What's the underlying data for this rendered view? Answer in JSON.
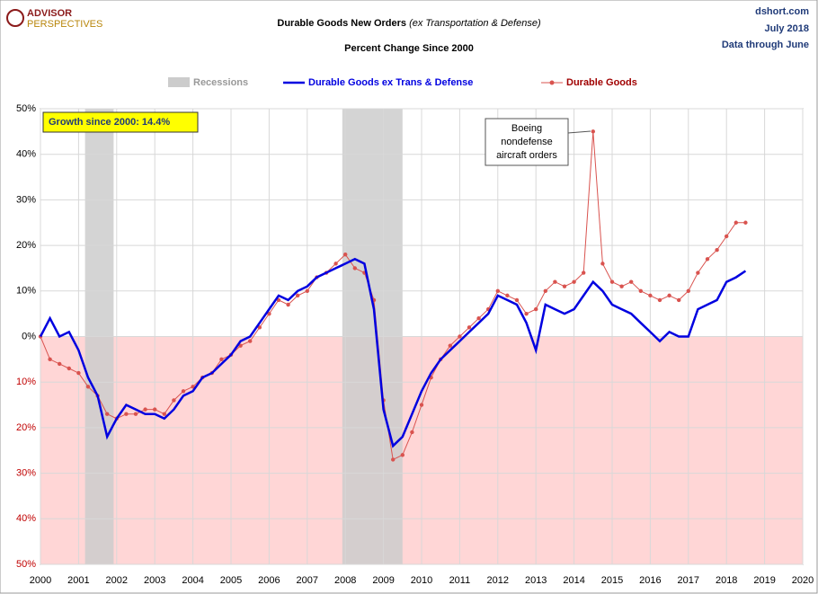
{
  "chart_data": {
    "type": "line",
    "logo": {
      "line1": "ADVISOR",
      "line2": "PERSPECTIVES"
    },
    "title": {
      "main": "Durable Goods New Orders",
      "italic": "(ex Transportation & Defense)"
    },
    "subtitle": "Percent Change Since 2000",
    "source": [
      "dshort.com",
      "July 2018",
      "Data through June"
    ],
    "recession_label": "Recessions",
    "recession_color": "#cccccc",
    "recessions": [
      [
        2001.17,
        2001.92
      ],
      [
        2007.92,
        2009.5
      ]
    ],
    "annotations": {
      "growth": "Growth since 2000:  14.4%",
      "boeing": [
        "Boeing",
        "nondefense",
        "aircraft orders"
      ]
    },
    "x": [
      2000,
      2000.25,
      2000.5,
      2000.75,
      2001,
      2001.25,
      2001.5,
      2001.75,
      2002,
      2002.25,
      2002.5,
      2002.75,
      2003,
      2003.25,
      2003.5,
      2003.75,
      2004,
      2004.25,
      2004.5,
      2004.75,
      2005,
      2005.25,
      2005.5,
      2005.75,
      2006,
      2006.25,
      2006.5,
      2006.75,
      2007,
      2007.25,
      2007.5,
      2007.75,
      2008,
      2008.25,
      2008.5,
      2008.75,
      2009,
      2009.25,
      2009.5,
      2009.75,
      2010,
      2010.25,
      2010.5,
      2010.75,
      2011,
      2011.25,
      2011.5,
      2011.75,
      2012,
      2012.25,
      2012.5,
      2012.75,
      2013,
      2013.25,
      2013.5,
      2013.75,
      2014,
      2014.25,
      2014.5,
      2014.75,
      2015,
      2015.25,
      2015.5,
      2015.75,
      2016,
      2016.25,
      2016.5,
      2016.75,
      2017,
      2017.25,
      2017.5,
      2017.75,
      2018,
      2018.25,
      2018.5
    ],
    "series": [
      {
        "name": "Durable Goods ex Trans & Defense",
        "color": "#0000e0",
        "values": [
          0,
          4,
          0,
          1,
          -3,
          -9,
          -13,
          -22,
          -18,
          -15,
          -16,
          -17,
          -17,
          -18,
          -16,
          -13,
          -12,
          -9,
          -8,
          -6,
          -4,
          -1,
          0,
          3,
          6,
          9,
          8,
          10,
          11,
          13,
          14,
          15,
          16,
          17,
          16,
          6,
          -16,
          -24,
          -22,
          -17,
          -12,
          -8,
          -5,
          -3,
          -1,
          1,
          3,
          5,
          9,
          8,
          7,
          3,
          -3,
          7,
          6,
          5,
          6,
          9,
          12,
          10,
          7,
          6,
          5,
          3,
          1,
          -1,
          1,
          0,
          0,
          6,
          7,
          8,
          12,
          13,
          14.4
        ]
      },
      {
        "name": "Durable Goods",
        "color": "#d9534f",
        "values": [
          0,
          -5,
          -6,
          -7,
          -8,
          -11,
          -13,
          -17,
          -18,
          -17,
          -17,
          -16,
          -16,
          -17,
          -14,
          -12,
          -11,
          -9,
          -8,
          -5,
          -4,
          -2,
          -1,
          2,
          5,
          8,
          7,
          9,
          10,
          13,
          14,
          16,
          18,
          15,
          14,
          8,
          -14,
          -27,
          -26,
          -21,
          -15,
          -9,
          -5,
          -2,
          0,
          2,
          4,
          6,
          10,
          9,
          8,
          5,
          6,
          10,
          12,
          11,
          12,
          14,
          45,
          16,
          12,
          11,
          12,
          10,
          9,
          8,
          9,
          8,
          10,
          14,
          17,
          19,
          22,
          25,
          25
        ]
      }
    ],
    "xlim": [
      2000,
      2020
    ],
    "xticks": [
      2000,
      2001,
      2002,
      2003,
      2004,
      2005,
      2006,
      2007,
      2008,
      2009,
      2010,
      2011,
      2012,
      2013,
      2014,
      2015,
      2016,
      2017,
      2018,
      2019,
      2020
    ],
    "ylim": [
      -50,
      50
    ],
    "yticks": [
      {
        "value": 50,
        "label": "50%"
      },
      {
        "value": 40,
        "label": "40%"
      },
      {
        "value": 30,
        "label": "30%"
      },
      {
        "value": 20,
        "label": "20%"
      },
      {
        "value": 10,
        "label": "10%"
      },
      {
        "value": 0,
        "label": "0%"
      },
      {
        "value": -10,
        "label": "10%"
      },
      {
        "value": -20,
        "label": "20%"
      },
      {
        "value": -30,
        "label": "30%"
      },
      {
        "value": -40,
        "label": "40%"
      },
      {
        "value": -50,
        "label": "50%"
      }
    ],
    "grid": true,
    "negative_fill": "#ffd6d6"
  }
}
